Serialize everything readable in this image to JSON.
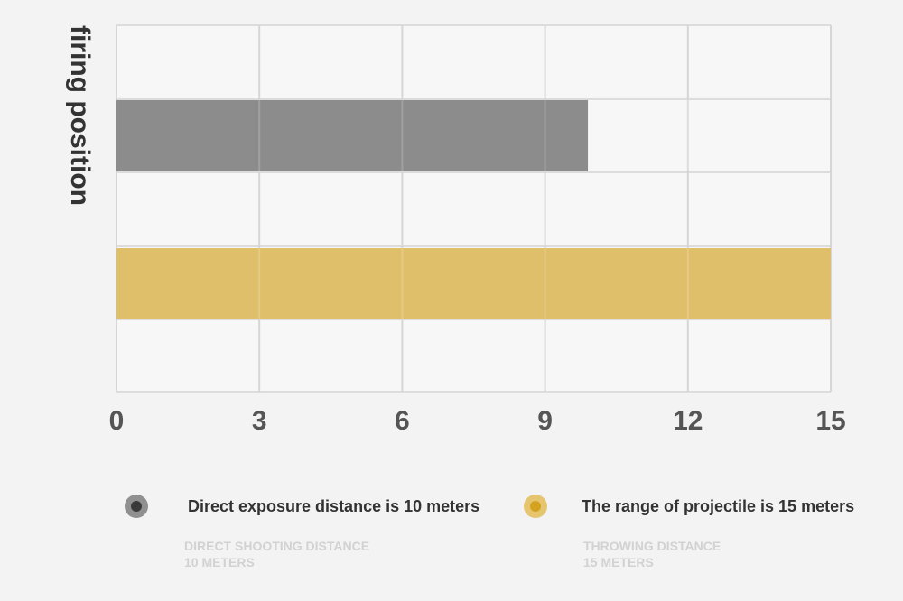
{
  "chart_data": {
    "type": "bar",
    "orientation": "horizontal",
    "ylabel": "firing position",
    "xlabel": "",
    "xlim": [
      0,
      15
    ],
    "xticks": [
      0,
      3,
      6,
      9,
      12,
      15
    ],
    "grid": true,
    "legend_position": "bottom",
    "series": [
      {
        "name": "Direct exposure distance is 10 meters",
        "sublabel_line1": "DIRECT SHOOTING DISTANCE",
        "sublabel_line2": "10 METERS",
        "value": 9.9,
        "color": "#8c8c8c",
        "marker_outer": "#909090",
        "marker_inner": "#3a3a3a"
      },
      {
        "name": "The range of projectile is 15 meters",
        "sublabel_line1": "THROWING DISTANCE",
        "sublabel_line2": "15 METERS",
        "value": 15,
        "color": "#e0bf6a",
        "marker_outer": "#e6c571",
        "marker_inner": "#d4a21e"
      }
    ]
  }
}
